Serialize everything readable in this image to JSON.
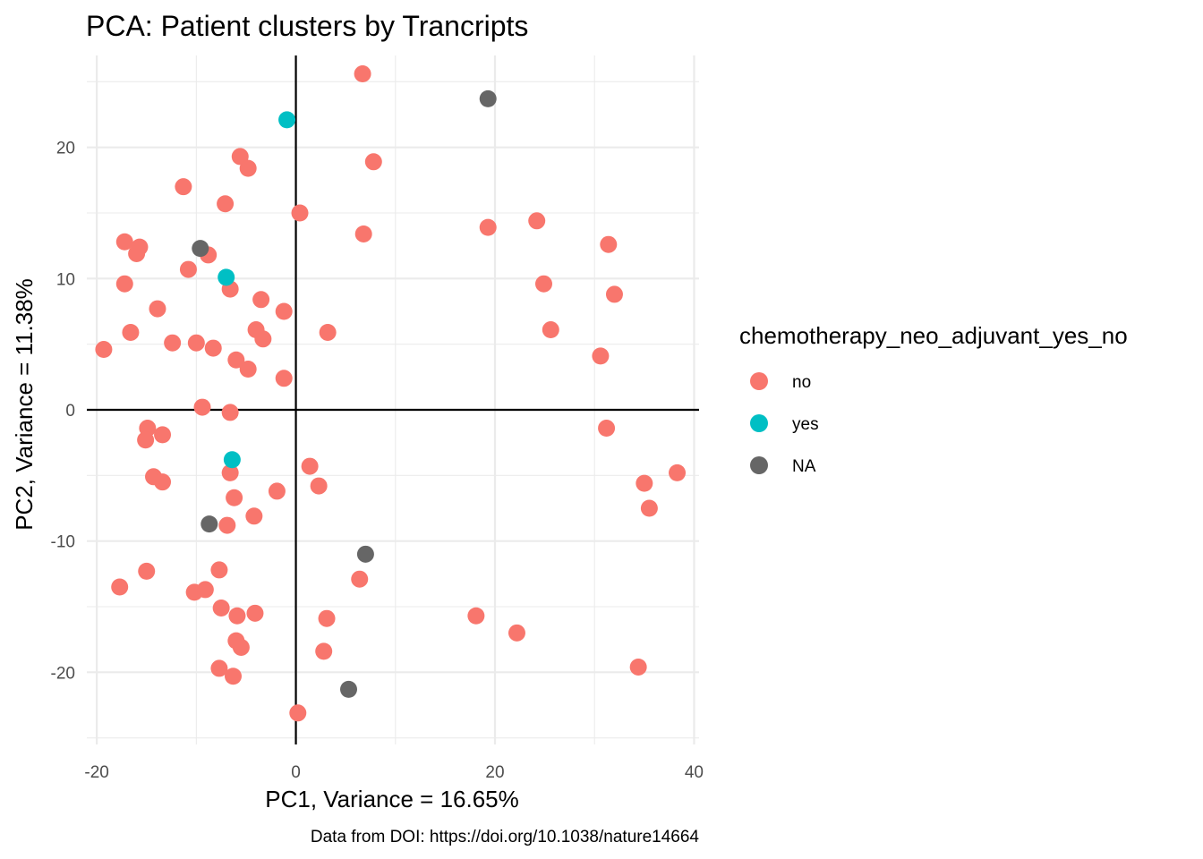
{
  "chart_data": {
    "type": "scatter",
    "title": "PCA: Patient clusters by Trancripts",
    "xlabel": "PC1, Variance = 16.65%",
    "ylabel": "PC2, Variance = 11.38%",
    "caption": "Data from DOI: https://doi.org/10.1038/nature14664",
    "xlim": [
      -21,
      40.5
    ],
    "ylim": [
      -25.5,
      27
    ],
    "x_ticks": [
      -20,
      0,
      20,
      40
    ],
    "y_ticks": [
      -20,
      -10,
      0,
      10,
      20
    ],
    "x_tick_labels": [
      "-20",
      "0",
      "20",
      "40"
    ],
    "y_tick_labels": [
      "-20",
      "-10",
      "0",
      "10",
      "20"
    ],
    "grid": true,
    "reference_lines": {
      "x": 0,
      "y": 0
    },
    "legend": {
      "title": "chemotherapy_neo_adjuvant_yes_no",
      "position": "right",
      "entries": [
        {
          "label": "no",
          "color": "#F8766D"
        },
        {
          "label": "yes",
          "color": "#00BFC4"
        },
        {
          "label": "NA",
          "color": "#666666"
        }
      ]
    },
    "series": [
      {
        "name": "no",
        "color": "#F8766D",
        "points": [
          [
            6.7,
            25.6
          ],
          [
            7.8,
            18.9
          ],
          [
            0.4,
            15.0
          ],
          [
            6.8,
            13.4
          ],
          [
            19.3,
            13.9
          ],
          [
            24.2,
            14.4
          ],
          [
            31.4,
            12.6
          ],
          [
            24.9,
            9.6
          ],
          [
            32.0,
            8.8
          ],
          [
            25.6,
            6.1
          ],
          [
            30.6,
            4.1
          ],
          [
            31.2,
            -1.4
          ],
          [
            35.0,
            -5.6
          ],
          [
            38.3,
            -4.8
          ],
          [
            35.5,
            -7.5
          ],
          [
            34.4,
            -19.6
          ],
          [
            18.1,
            -15.7
          ],
          [
            22.2,
            -17.0
          ],
          [
            6.4,
            -12.9
          ],
          [
            3.1,
            -15.9
          ],
          [
            2.8,
            -18.4
          ],
          [
            0.2,
            -23.1
          ],
          [
            1.4,
            -4.3
          ],
          [
            2.3,
            -5.8
          ],
          [
            3.2,
            5.9
          ],
          [
            -1.2,
            2.4
          ],
          [
            -1.2,
            7.5
          ],
          [
            -3.5,
            8.4
          ],
          [
            -3.3,
            5.4
          ],
          [
            -4.0,
            6.1
          ],
          [
            -4.8,
            3.1
          ],
          [
            -6.0,
            3.8
          ],
          [
            -6.6,
            9.2
          ],
          [
            -8.8,
            11.8
          ],
          [
            -7.1,
            15.7
          ],
          [
            -5.6,
            19.3
          ],
          [
            -4.8,
            18.4
          ],
          [
            -11.3,
            17.0
          ],
          [
            -10.8,
            10.7
          ],
          [
            -17.2,
            12.8
          ],
          [
            -15.7,
            12.4
          ],
          [
            -16.0,
            11.9
          ],
          [
            -17.2,
            9.6
          ],
          [
            -13.9,
            7.7
          ],
          [
            -16.6,
            5.9
          ],
          [
            -19.3,
            4.6
          ],
          [
            -12.4,
            5.1
          ],
          [
            -10.0,
            5.1
          ],
          [
            -8.3,
            4.7
          ],
          [
            -9.4,
            0.2
          ],
          [
            -6.6,
            -0.2
          ],
          [
            -14.9,
            -1.4
          ],
          [
            -13.4,
            -1.9
          ],
          [
            -15.1,
            -2.3
          ],
          [
            -14.3,
            -5.1
          ],
          [
            -13.4,
            -5.5
          ],
          [
            -6.6,
            -4.8
          ],
          [
            -6.2,
            -6.7
          ],
          [
            -1.9,
            -6.2
          ],
          [
            -4.2,
            -8.1
          ],
          [
            -6.9,
            -8.8
          ],
          [
            -7.7,
            -12.2
          ],
          [
            -15.0,
            -12.3
          ],
          [
            -17.7,
            -13.5
          ],
          [
            -10.2,
            -13.9
          ],
          [
            -9.1,
            -13.7
          ],
          [
            -7.5,
            -15.1
          ],
          [
            -5.9,
            -15.7
          ],
          [
            -4.1,
            -15.5
          ],
          [
            -6.0,
            -17.6
          ],
          [
            -5.5,
            -18.1
          ],
          [
            -7.7,
            -19.7
          ],
          [
            -6.3,
            -20.3
          ]
        ]
      },
      {
        "name": "yes",
        "color": "#00BFC4",
        "points": [
          [
            -0.9,
            22.1
          ],
          [
            -7.0,
            10.1
          ],
          [
            -6.4,
            -3.8
          ]
        ]
      },
      {
        "name": "NA",
        "color": "#666666",
        "points": [
          [
            19.3,
            23.7
          ],
          [
            -9.6,
            12.3
          ],
          [
            -8.7,
            -8.7
          ],
          [
            7.0,
            -11.0
          ],
          [
            5.3,
            -21.3
          ]
        ]
      }
    ]
  }
}
